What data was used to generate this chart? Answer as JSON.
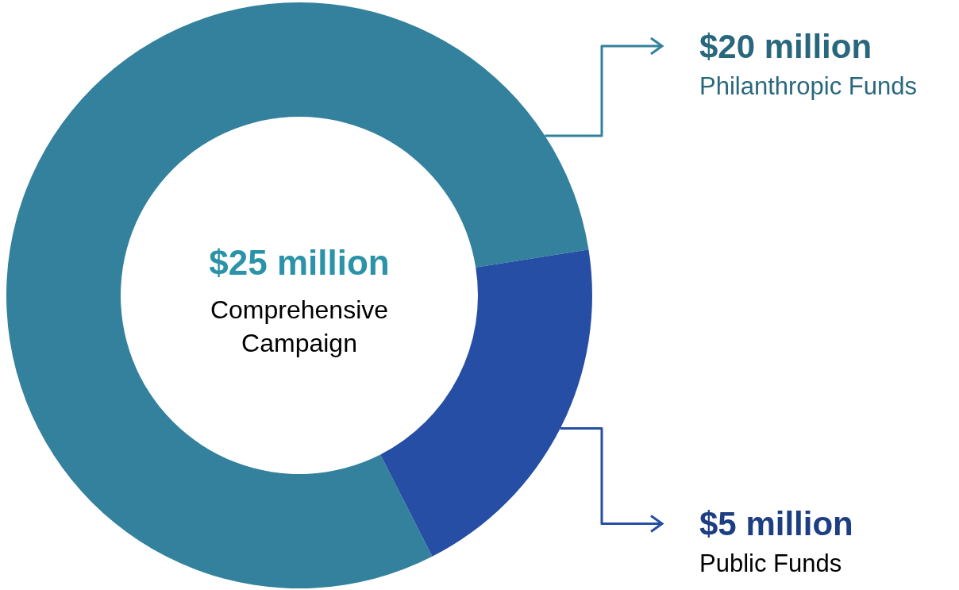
{
  "chart_data": {
    "type": "donut",
    "categories": [
      "Philanthropic Funds",
      "Public Funds"
    ],
    "values": [
      20,
      5
    ],
    "colors": [
      "#33819c",
      "#264ea4"
    ],
    "value_labels": [
      "$20 million",
      "$5 million"
    ],
    "annotations": [
      "$25 million",
      "Comprehensive Campaign"
    ]
  }
}
